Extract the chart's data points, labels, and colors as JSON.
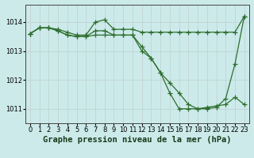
{
  "bg_color": "#cceaea",
  "grid_color": "#b0c8c8",
  "line_color": "#2d6e2d",
  "title": "Graphe pression niveau de la mer (hPa)",
  "xlim": [
    -0.5,
    23.5
  ],
  "ylim": [
    1010.5,
    1014.6
  ],
  "yticks": [
    1011,
    1012,
    1013,
    1014
  ],
  "xticks": [
    0,
    1,
    2,
    3,
    4,
    5,
    6,
    7,
    8,
    9,
    10,
    11,
    12,
    13,
    14,
    15,
    16,
    17,
    18,
    19,
    20,
    21,
    22,
    23
  ],
  "line1": {
    "x": [
      0,
      1,
      2,
      3,
      4,
      5,
      6,
      7,
      8,
      9,
      10,
      11,
      12,
      13,
      14,
      15,
      16,
      17,
      18,
      19,
      20,
      21,
      22,
      23
    ],
    "y": [
      1013.6,
      1013.8,
      1013.8,
      1013.75,
      1013.65,
      1013.55,
      1013.55,
      1014.0,
      1014.08,
      1013.75,
      1013.75,
      1013.75,
      1013.65,
      1013.65,
      1013.65,
      1013.65,
      1013.65,
      1013.65,
      1013.65,
      1013.65,
      1013.65,
      1013.65,
      1013.65,
      1014.2
    ]
  },
  "line2": {
    "x": [
      0,
      1,
      2,
      3,
      4,
      5,
      6,
      7,
      8,
      9,
      10,
      11,
      12,
      13,
      14,
      15,
      16,
      17,
      18,
      19,
      20,
      21,
      22,
      23
    ],
    "y": [
      1013.6,
      1013.8,
      1013.8,
      1013.7,
      1013.55,
      1013.5,
      1013.5,
      1013.55,
      1013.55,
      1013.55,
      1013.55,
      1013.55,
      1013.0,
      1012.75,
      1012.25,
      1011.9,
      1011.55,
      1011.15,
      1011.0,
      1011.0,
      1011.05,
      1011.35,
      1012.55,
      1014.2
    ]
  },
  "line3": {
    "x": [
      0,
      1,
      2,
      3,
      4,
      5,
      6,
      7,
      8,
      9,
      10,
      11,
      12,
      13,
      14,
      15,
      16,
      17,
      18,
      19,
      20,
      21,
      22,
      23
    ],
    "y": [
      1013.6,
      1013.8,
      1013.8,
      1013.7,
      1013.55,
      1013.5,
      1013.5,
      1013.7,
      1013.7,
      1013.55,
      1013.55,
      1013.55,
      1013.15,
      1012.75,
      1012.25,
      1011.55,
      1011.0,
      1011.0,
      1011.0,
      1011.05,
      1011.1,
      1011.15,
      1011.4,
      1011.15
    ]
  },
  "title_fontsize": 7.5,
  "tick_fontsize": 6,
  "marker_size": 4,
  "line_width": 0.9
}
